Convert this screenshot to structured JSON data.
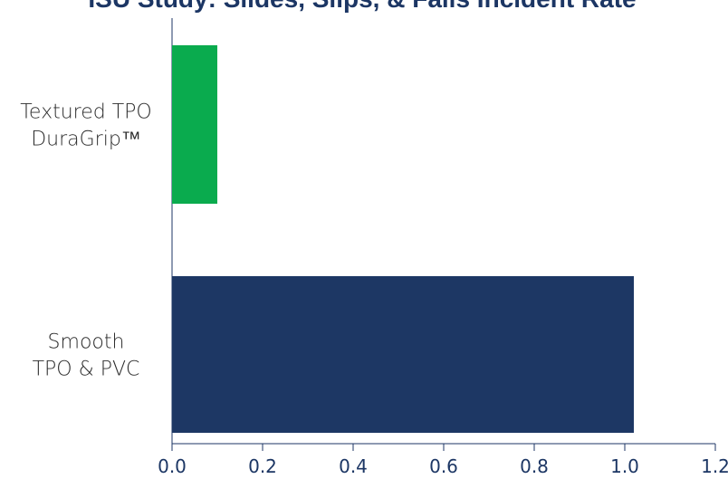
{
  "chart_data": {
    "type": "bar",
    "orientation": "horizontal",
    "title": "ISU Study: Slides, Slips, & Falls Incident Rate",
    "categories": [
      {
        "lines": [
          "Textured TPO",
          "DuraGrip™"
        ]
      },
      {
        "lines": [
          "Smooth",
          "TPO & PVC"
        ]
      }
    ],
    "values": [
      0.1,
      1.02
    ],
    "colors": [
      "#0aab4e",
      "#1d3764"
    ],
    "xlim": [
      0,
      1.2
    ],
    "xticks": [
      "0.0",
      "0.2",
      "0.4",
      "0.6",
      "0.8",
      "1.0",
      "1.2"
    ],
    "grid": false,
    "xlabel": "",
    "ylabel": ""
  }
}
